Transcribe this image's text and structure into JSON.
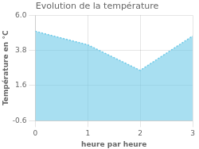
{
  "chart_data": {
    "type": "area",
    "title": "Evolution de la température",
    "xlabel": "heure par heure",
    "ylabel": "Température en °C",
    "x": [
      0,
      1,
      2,
      3
    ],
    "values": [
      5.0,
      4.15,
      2.55,
      4.7
    ],
    "color": "#6ecae8",
    "line_style": "dotted",
    "xlim": [
      0,
      3
    ],
    "ylim": [
      -0.6,
      6.0
    ],
    "xticks": [
      0,
      1,
      2,
      3
    ],
    "yticks": [
      -0.6,
      1.6,
      3.8,
      {
        "value": 6.0,
        "label": "6.0"
      }
    ],
    "grid": true
  }
}
